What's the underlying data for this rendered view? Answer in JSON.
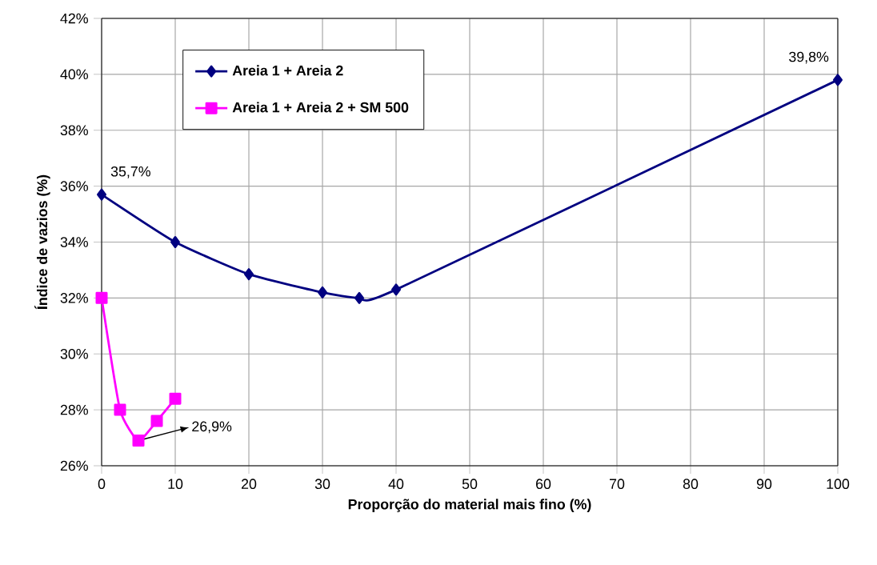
{
  "chart_data": {
    "type": "line",
    "xlabel": "Proporção do material mais fino (%)",
    "ylabel": "Índice de vazios (%)",
    "xlim": [
      0,
      100
    ],
    "xticks": [
      0,
      10,
      20,
      30,
      40,
      50,
      60,
      70,
      80,
      90,
      100
    ],
    "ylim": [
      26,
      42
    ],
    "yticks": [
      {
        "value": 26,
        "label": "26%"
      },
      {
        "value": 28,
        "label": "28%"
      },
      {
        "value": 30,
        "label": "30%"
      },
      {
        "value": 32,
        "label": "32%"
      },
      {
        "value": 34,
        "label": "34%"
      },
      {
        "value": 36,
        "label": "36%"
      },
      {
        "value": 38,
        "label": "38%"
      },
      {
        "value": 40,
        "label": "40%"
      },
      {
        "value": 42,
        "label": "42%"
      }
    ],
    "grid": true,
    "legend": "top left",
    "line_style": "solid",
    "series": [
      {
        "name": "Areia 1 + Areia 2",
        "color": "#000080",
        "marker": "diamond",
        "x": [
          0,
          10,
          20,
          30,
          35,
          40,
          100
        ],
        "values": [
          35.7,
          34.0,
          32.85,
          32.2,
          32.0,
          32.3,
          39.8
        ]
      },
      {
        "name": "Areia 1 + Areia 2 + SM 500",
        "color": "#ff00ff",
        "marker": "square",
        "x": [
          0,
          2.5,
          5,
          7.5,
          10
        ],
        "values": [
          32.0,
          28.0,
          26.9,
          27.6,
          28.4
        ]
      }
    ],
    "annotations": [
      {
        "text": "35,7%",
        "x": 0,
        "y": 35.7
      },
      {
        "text": "39,8%",
        "x": 100,
        "y": 39.8
      },
      {
        "text": "26,9%",
        "x": 5,
        "y": 26.9
      }
    ]
  }
}
